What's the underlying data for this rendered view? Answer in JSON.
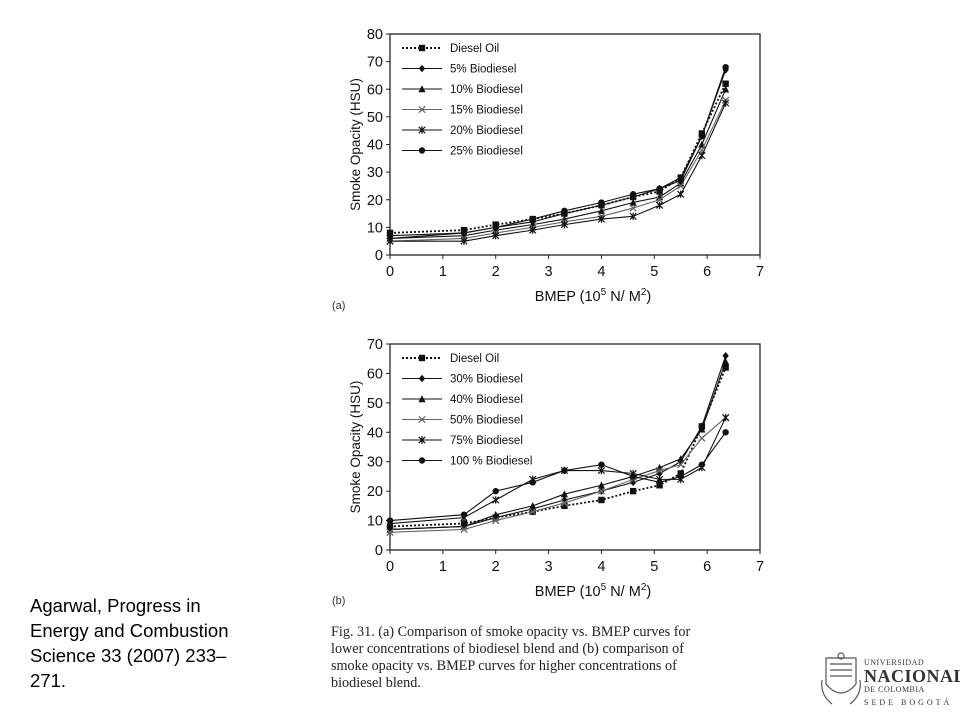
{
  "chart_data": [
    {
      "type": "line",
      "panel_label": "(a)",
      "xlabel": "BMEP (10",
      "xlabel_sup": "5",
      "xlabel_mid": " N/ M",
      "xlabel_sup2": "2",
      "xlabel_end": ")",
      "ylabel": "Smoke Opacity (HSU)",
      "xlim": [
        0,
        7
      ],
      "ylim": [
        0,
        80
      ],
      "xticks": [
        "0",
        "1",
        "2",
        "3",
        "4",
        "5",
        "6",
        "7"
      ],
      "yticks": [
        "0",
        "10",
        "20",
        "30",
        "40",
        "50",
        "60",
        "70",
        "80"
      ],
      "legend_position": "top-left",
      "series": [
        {
          "name": "Diesel Oil",
          "marker": "square",
          "dash": "dotted",
          "x": [
            0,
            1.4,
            2.0,
            2.7,
            3.3,
            4.0,
            4.6,
            5.1,
            5.5,
            5.9,
            6.35
          ],
          "y": [
            8,
            9,
            11,
            13,
            15,
            18,
            21,
            23,
            28,
            44,
            62
          ]
        },
        {
          "name": "5% Biodiesel",
          "marker": "diamond",
          "dash": "solid",
          "x": [
            0,
            1.4,
            2.0,
            2.7,
            3.3,
            4.0,
            4.6,
            5.1,
            5.5,
            5.9,
            6.35
          ],
          "y": [
            6,
            8,
            10,
            12,
            15,
            18,
            21,
            24,
            28,
            43,
            67
          ]
        },
        {
          "name": "10% Biodiesel",
          "marker": "triangle",
          "dash": "solid",
          "x": [
            0,
            1.4,
            2.0,
            2.7,
            3.3,
            4.0,
            4.6,
            5.1,
            5.5,
            5.9,
            6.35
          ],
          "y": [
            6,
            7,
            9,
            11,
            13,
            16,
            19,
            21,
            26,
            40,
            60
          ]
        },
        {
          "name": "15% Biodiesel",
          "marker": "x",
          "dash": "solid",
          "x": [
            0,
            1.4,
            2.0,
            2.7,
            3.3,
            4.0,
            4.6,
            5.1,
            5.5,
            5.9,
            6.35
          ],
          "y": [
            5,
            6,
            8,
            10,
            12,
            14,
            17,
            20,
            25,
            38,
            56
          ]
        },
        {
          "name": "20% Biodiesel",
          "marker": "asterisk",
          "dash": "solid",
          "x": [
            0,
            1.4,
            2.0,
            2.7,
            3.3,
            4.0,
            4.6,
            5.1,
            5.5,
            5.9,
            6.35
          ],
          "y": [
            5,
            5,
            7,
            9,
            11,
            13,
            14,
            18,
            22,
            36,
            55
          ]
        },
        {
          "name": "25% Biodiesel",
          "marker": "circle",
          "dash": "solid",
          "x": [
            0,
            1.4,
            2.0,
            2.7,
            3.3,
            4.0,
            4.6,
            5.1,
            5.5,
            5.9,
            6.35
          ],
          "y": [
            7,
            8,
            10,
            13,
            16,
            19,
            22,
            24,
            27,
            43,
            68
          ]
        }
      ]
    },
    {
      "type": "line",
      "panel_label": "(b)",
      "xlabel": "BMEP (10",
      "xlabel_sup": "5",
      "xlabel_mid": " N/ M",
      "xlabel_sup2": "2",
      "xlabel_end": ")",
      "ylabel": "Smoke Opacity (HSU)",
      "xlim": [
        0,
        7
      ],
      "ylim": [
        0,
        70
      ],
      "xticks": [
        "0",
        "1",
        "2",
        "3",
        "4",
        "5",
        "6",
        "7"
      ],
      "yticks": [
        "0",
        "10",
        "20",
        "30",
        "40",
        "50",
        "60",
        "70"
      ],
      "legend_position": "top-left",
      "series": [
        {
          "name": "Diesel Oil",
          "marker": "square",
          "dash": "dotted",
          "x": [
            0,
            1.4,
            2.0,
            2.7,
            3.3,
            4.0,
            4.6,
            5.1,
            5.5,
            5.9,
            6.35
          ],
          "y": [
            8,
            9,
            11,
            13,
            15,
            17,
            20,
            22,
            26,
            42,
            62
          ]
        },
        {
          "name": "30% Biodiesel",
          "marker": "diamond",
          "dash": "solid",
          "x": [
            0,
            1.4,
            2.0,
            2.7,
            3.3,
            4.0,
            4.6,
            5.1,
            5.5,
            5.9,
            6.35
          ],
          "y": [
            7,
            8,
            11,
            14,
            17,
            20,
            23,
            26,
            30,
            42,
            66
          ]
        },
        {
          "name": "40% Biodiesel",
          "marker": "triangle",
          "dash": "solid",
          "x": [
            0,
            1.4,
            2.0,
            2.7,
            3.3,
            4.0,
            4.6,
            5.1,
            5.5,
            5.9,
            6.35
          ],
          "y": [
            7,
            8,
            12,
            15,
            19,
            22,
            25,
            28,
            31,
            41,
            64
          ]
        },
        {
          "name": "50% Biodiesel",
          "marker": "x",
          "dash": "solid",
          "x": [
            0,
            1.4,
            2.0,
            2.7,
            3.3,
            4.0,
            4.6,
            5.1,
            5.5,
            5.9,
            6.35
          ],
          "y": [
            6,
            7,
            10,
            13,
            16,
            20,
            24,
            27,
            29,
            38,
            45
          ]
        },
        {
          "name": "75% Biodiesel",
          "marker": "asterisk",
          "dash": "solid",
          "x": [
            0,
            1.4,
            2.0,
            2.7,
            3.3,
            4.0,
            4.6,
            5.1,
            5.5,
            5.9,
            6.35
          ],
          "y": [
            9,
            11,
            17,
            24,
            27,
            27,
            26,
            24,
            24,
            28,
            45
          ]
        },
        {
          "name": "100 % Biodiesel",
          "marker": "circle",
          "dash": "solid",
          "x": [
            0,
            1.4,
            2.0,
            2.7,
            3.3,
            4.0,
            4.6,
            5.1,
            5.5,
            5.9,
            6.35
          ],
          "y": [
            10,
            12,
            20,
            23,
            27,
            29,
            25,
            23,
            25,
            29,
            40
          ]
        }
      ]
    }
  ],
  "citation": {
    "lines": [
      "Agarwal, Progress in",
      "Energy and Combustion",
      "Science 33 (2007) 233–",
      "271."
    ]
  },
  "caption": {
    "lines": [
      "Fig. 31. (a) Comparison of smoke opacity vs. BMEP curves for",
      "lower concentrations of biodiesel blend and (b) comparison of",
      "smoke opacity vs. BMEP curves for higher concentrations of",
      "biodiesel blend."
    ]
  },
  "logo": {
    "line1": "UNIVERSIDAD",
    "line2": "NACIONAL",
    "line3": "DE COLOMBIA",
    "line4": "SEDE BOGOTÁ"
  }
}
